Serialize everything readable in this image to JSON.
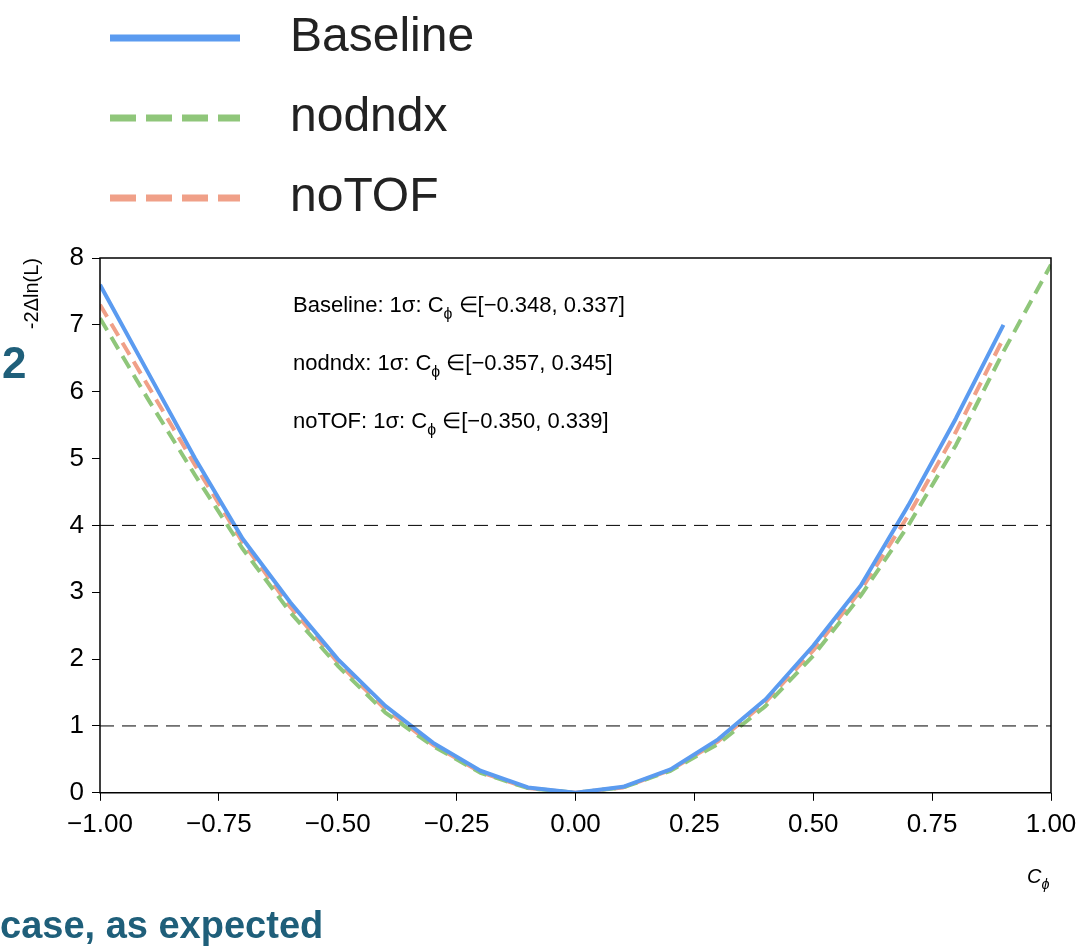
{
  "chart_data": {
    "type": "line",
    "xlabel": "C$_{ϕ}$",
    "ylabel": "-2Δln(L)",
    "x": [
      -1,
      -0.9,
      -0.8,
      -0.7,
      -0.6,
      -0.5,
      -0.4,
      -0.3,
      -0.2,
      -0.1,
      0,
      0.1,
      0.2,
      0.3,
      0.4,
      0.5,
      0.6,
      0.7,
      0.8,
      0.9,
      1.0
    ],
    "series": [
      {
        "name": "Baseline",
        "color": "#5b9bf0",
        "line_style": "solid",
        "values": [
          7.6,
          6.3,
          5.0,
          3.8,
          2.85,
          2.0,
          1.3,
          0.75,
          0.33,
          0.08,
          0,
          0.09,
          0.35,
          0.8,
          1.4,
          2.2,
          3.1,
          4.3,
          5.6,
          7.0,
          null
        ]
      },
      {
        "name": "nodndx",
        "color": "#8fc67a",
        "line_style": "dashed",
        "values": [
          7.1,
          5.9,
          4.75,
          3.65,
          2.7,
          1.9,
          1.2,
          0.7,
          0.3,
          0.07,
          0,
          0.08,
          0.33,
          0.73,
          1.3,
          2.05,
          2.95,
          4.0,
          5.2,
          6.6,
          7.9
        ]
      },
      {
        "name": "noTOF",
        "color": "#f0a088",
        "line_style": "dashed",
        "values": [
          7.3,
          6.1,
          4.9,
          3.75,
          2.78,
          1.95,
          1.25,
          0.72,
          0.31,
          0.07,
          0,
          0.08,
          0.34,
          0.77,
          1.36,
          2.13,
          3.03,
          4.15,
          5.4,
          6.8,
          null
        ]
      }
    ],
    "xlim": [
      -1,
      1
    ],
    "xticks": [
      {
        "value": -1,
        "label": "−1.00"
      },
      {
        "value": -0.75,
        "label": "−0.75"
      },
      {
        "value": -0.5,
        "label": "−0.50"
      },
      {
        "value": -0.25,
        "label": "−0.25"
      },
      {
        "value": 0,
        "label": "0.00"
      },
      {
        "value": 0.25,
        "label": "0.25"
      },
      {
        "value": 0.5,
        "label": "0.50"
      },
      {
        "value": 0.75,
        "label": "0.75"
      },
      {
        "value": 1,
        "label": "1.00"
      }
    ],
    "ylim": [
      0,
      8
    ],
    "yticks": [
      0,
      1,
      2,
      3,
      4,
      5,
      6,
      7,
      8
    ],
    "ref_lines": [
      {
        "axis": "y",
        "value": 1,
        "color": "#000000",
        "line_style": "dashed"
      },
      {
        "axis": "y",
        "value": 4,
        "color": "#000000",
        "line_style": "dashed"
      }
    ],
    "legend": "top left",
    "grid": false,
    "marker": "none",
    "annotations": [
      "Baseline: 1σ: C$_{ϕ}$ ∈[−0.348, 0.337]",
      "nodndx: 1σ: C$_{ϕ}$ ∈[−0.357, 0.345]",
      "noTOF: 1σ: C$_{ϕ}$ ∈[−0.350, 0.339]",
      "2",
      "case, as expected"
    ]
  }
}
